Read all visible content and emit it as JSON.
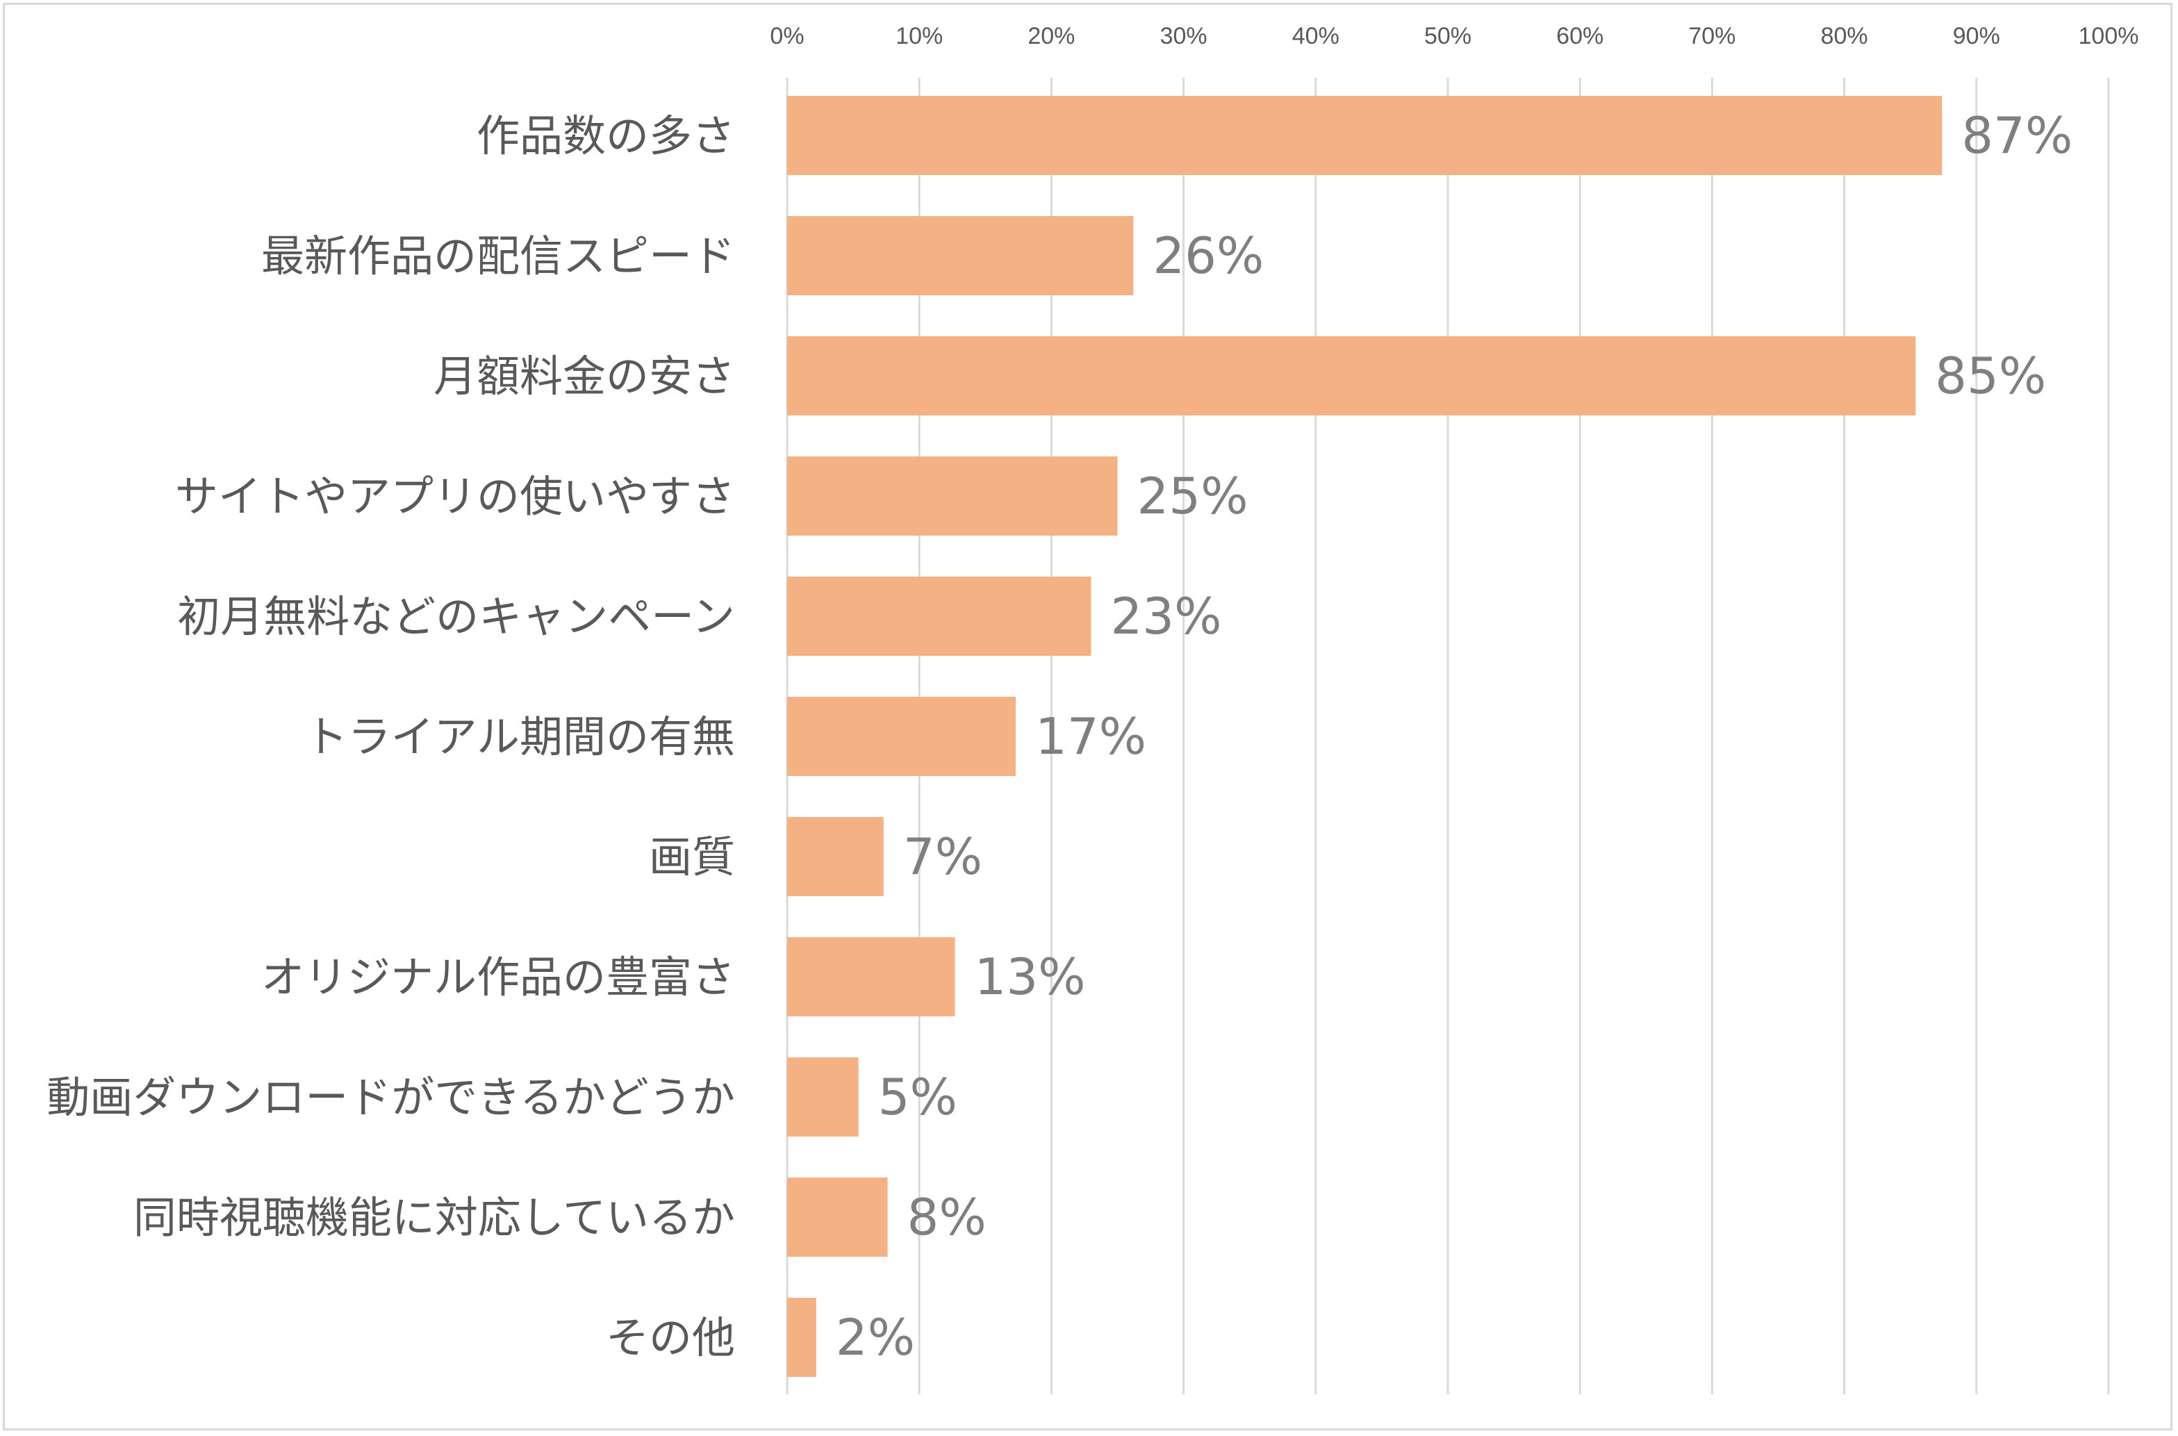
{
  "chart_data": {
    "type": "bar",
    "orientation": "horizontal",
    "title": "",
    "xlabel": "",
    "ylabel": "",
    "xlim": [
      0,
      100
    ],
    "tick_values": [
      0,
      10,
      20,
      30,
      40,
      50,
      60,
      70,
      80,
      90,
      100
    ],
    "tick_labels": [
      "0%",
      "10%",
      "20%",
      "30%",
      "40%",
      "50%",
      "60%",
      "70%",
      "80%",
      "90%",
      "100%"
    ],
    "axis_position": "top",
    "grid": true,
    "bar_color": "#F4B183",
    "gridline_color": "#D9D9D9",
    "label_color": "#595959",
    "data_label_color": "#7F7F7F",
    "categories": [
      "作品数の多さ",
      "最新作品の配信スピード",
      "月額料金の安さ",
      "サイトやアプリの使いやすさ",
      "初月無料などのキャンペーン",
      "トライアル期間の有無",
      "画質",
      "オリジナル作品の豊富さ",
      "動画ダウンロードができるかどうか",
      "同時視聴機能に対応しているか",
      "その他"
    ],
    "values": [
      87.4,
      26.2,
      85.4,
      25.0,
      23.0,
      17.3,
      7.3,
      12.7,
      5.4,
      7.6,
      2.2
    ],
    "data_labels": [
      "87%",
      "26%",
      "85%",
      "25%",
      "23%",
      "17%",
      "7%",
      "13%",
      "5%",
      "8%",
      "2%"
    ]
  }
}
